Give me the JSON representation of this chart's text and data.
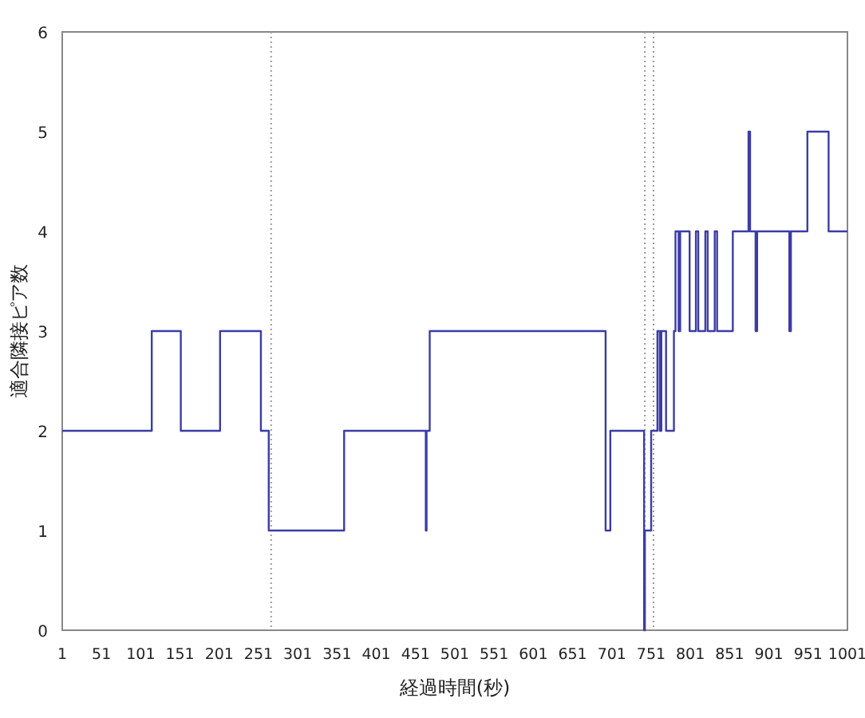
{
  "chart_data": {
    "type": "step",
    "xlabel": "経過時間(秒)",
    "ylabel": "適合隣接ピア数",
    "x": [
      1,
      115,
      152,
      202,
      254,
      264,
      360,
      464,
      465,
      469,
      693,
      699,
      742,
      743,
      751,
      759,
      762,
      764,
      770,
      780,
      782,
      786,
      788,
      800,
      808,
      811,
      820,
      823,
      832,
      835,
      855,
      875,
      877,
      884,
      886,
      927,
      929,
      950,
      977,
      1001
    ],
    "series": [
      {
        "color": "#3c3ca8",
        "values": [
          2,
          3,
          2,
          3,
          2,
          1,
          2,
          1,
          2,
          3,
          1,
          2,
          0,
          1,
          2,
          3,
          2,
          3,
          2,
          3,
          4,
          3,
          4,
          3,
          4,
          3,
          4,
          3,
          4,
          3,
          4,
          5,
          4,
          3,
          4,
          3,
          4,
          5,
          4,
          4
        ]
      }
    ],
    "xlim": [
      1,
      1001
    ],
    "ylim": [
      0,
      6
    ],
    "xticks": [
      1,
      51,
      101,
      151,
      201,
      251,
      301,
      351,
      401,
      451,
      501,
      551,
      601,
      651,
      701,
      751,
      801,
      851,
      901,
      951,
      1001
    ],
    "yticks": [
      0,
      1,
      2,
      3,
      4,
      5,
      6
    ],
    "ref_lines": [
      {
        "axis": "x",
        "value": 267,
        "color": "#999999",
        "line_style": "dotted"
      },
      {
        "axis": "x",
        "value": 743,
        "color": "#999999",
        "line_style": "dotted"
      },
      {
        "axis": "x",
        "value": 754,
        "color": "#999999",
        "line_style": "dotted"
      }
    ]
  }
}
